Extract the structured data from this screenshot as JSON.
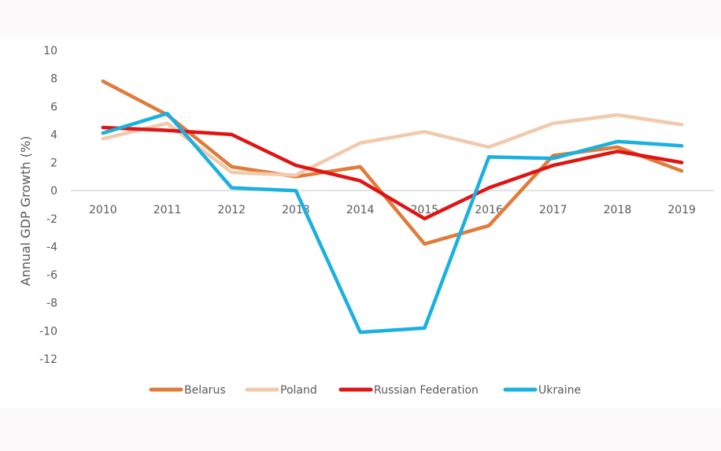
{
  "chart_data": {
    "type": "line",
    "title": "",
    "xlabel": "",
    "ylabel": "Annual GDP Growth (%)",
    "ylim": [
      -12,
      10
    ],
    "yticks": [
      10,
      8,
      6,
      4,
      2,
      0,
      -2,
      -4,
      -6,
      -8,
      -10,
      -12
    ],
    "x": [
      "2010",
      "2011",
      "2012",
      "2013",
      "2014",
      "2015",
      "2016",
      "2017",
      "2018",
      "2019"
    ],
    "grid": false,
    "legend_position": "bottom",
    "series": [
      {
        "name": "Belarus",
        "color": "#e07b39",
        "values": [
          7.8,
          5.4,
          1.7,
          1.0,
          1.7,
          -3.8,
          -2.5,
          2.5,
          3.1,
          1.4
        ]
      },
      {
        "name": "Poland",
        "color": "#f2c9ad",
        "values": [
          3.7,
          4.8,
          1.3,
          1.1,
          3.4,
          4.2,
          3.1,
          4.8,
          5.4,
          4.7
        ]
      },
      {
        "name": "Russian Federation",
        "color": "#e01414",
        "values": [
          4.5,
          4.3,
          4.0,
          1.8,
          0.7,
          -2.0,
          0.2,
          1.8,
          2.8,
          2.0
        ]
      },
      {
        "name": "Ukraine",
        "color": "#1ab0e0",
        "values": [
          4.1,
          5.5,
          0.2,
          0.0,
          -10.1,
          -9.8,
          2.4,
          2.3,
          3.5,
          3.2
        ]
      }
    ]
  }
}
